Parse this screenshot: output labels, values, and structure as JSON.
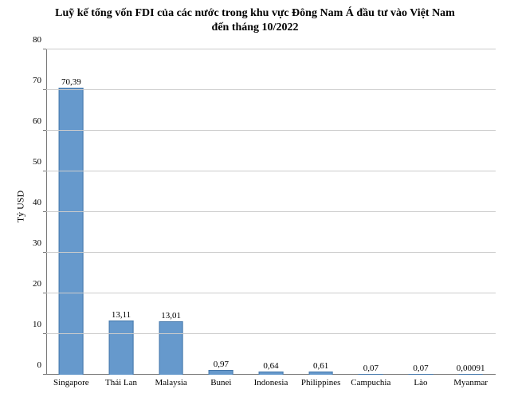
{
  "chart": {
    "type": "bar",
    "title": "Luỹ kế tổng vốn FDI của các nước trong khu vực Đông Nam Á đầu tư vào Việt Nam\nđến tháng 10/2022",
    "title_fontsize": 14,
    "title_fontweight": "bold",
    "title_color": "#000000",
    "ylabel": "Tỷ USD",
    "ylabel_fontsize": 12,
    "label_fontsize": 11,
    "value_label_fontsize": 11,
    "tick_fontsize": 11,
    "font_family": "Times New Roman",
    "background_color": "#ffffff",
    "grid_color": "#cccccc",
    "axis_color": "#777777",
    "bar_fill": "#6699cc",
    "bar_border": "#4477aa",
    "bar_width": 0.46,
    "ylim": [
      0,
      80
    ],
    "ytick_step": 10,
    "yticks": [
      0,
      10,
      20,
      30,
      40,
      50,
      60,
      70,
      80
    ],
    "categories": [
      "Singapore",
      "Thái Lan",
      "Malaysia",
      "Bunei",
      "Indonesia",
      "Philippines",
      "Campuchia",
      "Lào",
      "Myanmar"
    ],
    "values": [
      70.39,
      13.11,
      13.01,
      0.97,
      0.64,
      0.61,
      0.07,
      0.07,
      0.00091
    ],
    "value_labels": [
      "70,39",
      "13,11",
      "13,01",
      "0,97",
      "0,64",
      "0,61",
      "0,07",
      "0,07",
      "0,00091"
    ]
  }
}
